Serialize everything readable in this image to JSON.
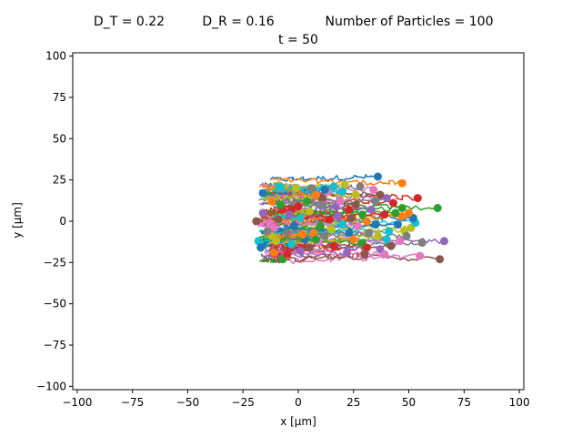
{
  "chart_data": {
    "type": "scatter",
    "title_line1_parts": [
      "D_T = 0.22",
      "D_R = 0.16",
      "Number of Particles = 100"
    ],
    "title_line2": "t = 50",
    "xlabel": "x [µm]",
    "ylabel": "y [µm]",
    "xlim": [
      -102,
      102
    ],
    "ylim": [
      -102,
      102
    ],
    "xticks": [
      -100,
      -75,
      -50,
      -25,
      0,
      25,
      50,
      75,
      100
    ],
    "yticks": [
      -100,
      -75,
      -50,
      -25,
      0,
      25,
      50,
      75,
      100
    ],
    "grid": false,
    "colors": [
      "#1f77b4",
      "#ff7f0e",
      "#2ca02c",
      "#d62728",
      "#9467bd",
      "#8c564b",
      "#e377c2",
      "#7f7f7f",
      "#bcbd22",
      "#17becf"
    ],
    "final_positions": [
      [
        36,
        27
      ],
      [
        47,
        23
      ],
      [
        63,
        8
      ],
      [
        54,
        14
      ],
      [
        66,
        -12
      ],
      [
        64,
        -23
      ],
      [
        55,
        -21
      ],
      [
        56,
        -13
      ],
      [
        48,
        -6
      ],
      [
        40,
        -11
      ],
      [
        35,
        -2
      ],
      [
        31,
        0
      ],
      [
        29,
        4
      ],
      [
        23,
        7
      ],
      [
        17,
        9
      ],
      [
        11,
        14
      ],
      [
        13,
        18
      ],
      [
        6,
        20
      ],
      [
        -1,
        20
      ],
      [
        -8,
        21
      ],
      [
        -16,
        17
      ],
      [
        -12,
        12
      ],
      [
        -8,
        10
      ],
      [
        -3,
        7
      ],
      [
        -16,
        5
      ],
      [
        -19,
        0
      ],
      [
        -11,
        -4
      ],
      [
        -5,
        -7
      ],
      [
        -12,
        -9
      ],
      [
        -18,
        -12
      ],
      [
        -17,
        -16
      ],
      [
        -11,
        -19
      ],
      [
        -7,
        -23
      ],
      [
        -5,
        -20
      ],
      [
        1,
        -18
      ],
      [
        5,
        -16
      ],
      [
        9,
        -13
      ],
      [
        12,
        -9
      ],
      [
        15,
        -5
      ],
      [
        20,
        -2
      ],
      [
        23,
        -7
      ],
      [
        25,
        -11
      ],
      [
        29,
        -13
      ],
      [
        31,
        -16
      ],
      [
        37,
        -17
      ],
      [
        42,
        -15
      ],
      [
        46,
        -12
      ],
      [
        49,
        -9
      ],
      [
        51,
        -4
      ],
      [
        53,
        -1
      ],
      [
        52,
        2
      ],
      [
        50,
        5
      ],
      [
        47,
        8
      ],
      [
        43,
        11
      ],
      [
        40,
        14
      ],
      [
        37,
        16
      ],
      [
        34,
        19
      ],
      [
        28,
        21
      ],
      [
        21,
        22
      ],
      [
        16,
        21
      ],
      [
        12,
        19
      ],
      [
        8,
        16
      ],
      [
        4,
        12
      ],
      [
        0,
        9
      ],
      [
        -4,
        4
      ],
      [
        -9,
        1
      ],
      [
        -13,
        -1
      ],
      [
        -14,
        -6
      ],
      [
        -10,
        -12
      ],
      [
        -3,
        -14
      ],
      [
        3,
        -11
      ],
      [
        7,
        -7
      ],
      [
        10,
        -3
      ],
      [
        14,
        1
      ],
      [
        18,
        3
      ],
      [
        24,
        2
      ],
      [
        27,
        -3
      ],
      [
        32,
        -7
      ],
      [
        36,
        -9
      ],
      [
        41,
        -6
      ],
      [
        45,
        -2
      ],
      [
        47,
        3
      ],
      [
        44,
        5
      ],
      [
        39,
        4
      ],
      [
        33,
        7
      ],
      [
        26,
        10
      ],
      [
        19,
        12
      ],
      [
        11,
        10
      ],
      [
        5,
        6
      ],
      [
        1,
        2
      ],
      [
        -2,
        -3
      ],
      [
        2,
        -8
      ],
      [
        8,
        -11
      ],
      [
        16,
        -15
      ],
      [
        22,
        -19
      ],
      [
        30,
        -20
      ],
      [
        39,
        -20
      ],
      [
        35,
        12
      ],
      [
        26,
        16
      ],
      [
        20,
        18
      ]
    ]
  }
}
